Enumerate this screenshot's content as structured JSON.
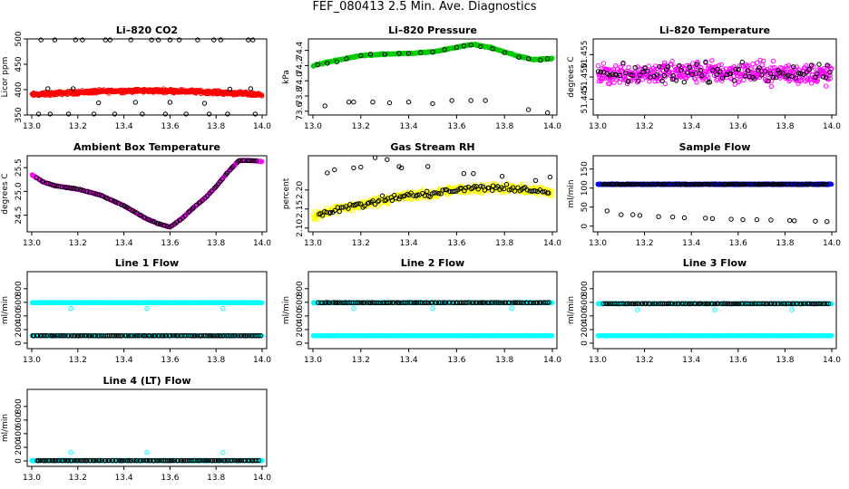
{
  "figure": {
    "title": "FEF_080413  2.5 Min. Ave. Diagnostics"
  },
  "colors": {
    "black": "#000000",
    "red": "#ff0000",
    "green": "#00cc00",
    "magenta": "#ff00ff",
    "yellow": "#ffff00",
    "blue": "#0000ff",
    "cyan": "#00ffff"
  },
  "chart_data": [
    {
      "type": "scatter",
      "title": "Li–820 CO2",
      "ylabel": "Licor ppm",
      "xlim": [
        13.0,
        14.0
      ],
      "ylim": [
        350,
        500
      ],
      "xticks": [
        "13.0",
        "13.2",
        "13.4",
        "13.6",
        "13.8",
        "14.0"
      ],
      "yticks": [
        "350",
        "400",
        "450",
        "500"
      ],
      "series": [
        {
          "color": "red",
          "style": "dense",
          "pattern": "flat",
          "x_range": [
            13.0,
            14.0
          ],
          "base": 390,
          "amp": 8,
          "noise": 5,
          "n": 500
        },
        {
          "color": "black",
          "style": "points",
          "x": [
            13.04,
            13.1,
            13.19,
            13.22,
            13.32,
            13.34,
            13.43,
            13.52,
            13.55,
            13.6,
            13.64,
            13.72,
            13.79,
            13.82,
            13.94,
            13.96,
            13.03,
            13.08,
            13.16,
            13.27,
            13.36,
            13.48,
            13.58,
            13.67,
            13.77,
            13.85,
            13.97,
            13.07,
            13.18,
            13.29,
            13.45,
            13.6,
            13.75,
            13.86,
            13.95
          ],
          "y": [
            498,
            498,
            498,
            498,
            498,
            498,
            498,
            498,
            498,
            498,
            498,
            498,
            498,
            498,
            498,
            498,
            352,
            352,
            352,
            352,
            352,
            352,
            352,
            352,
            352,
            352,
            352,
            402,
            402,
            374,
            375,
            375,
            373,
            401,
            402
          ]
        }
      ]
    },
    {
      "type": "scatter",
      "title": "Li–820 Pressure",
      "ylabel": "kPa",
      "xlim": [
        13.0,
        14.0
      ],
      "ylim": [
        73.55,
        74.55
      ],
      "xticks": [
        "13.0",
        "13.2",
        "13.4",
        "13.6",
        "13.8",
        "14.0"
      ],
      "yticks": [
        "73.6",
        "73.8",
        "74.0",
        "74.2",
        "74.4"
      ],
      "series": [
        {
          "color": "green",
          "style": "dense",
          "pattern": "pressure",
          "x_range": [
            13.0,
            14.0
          ],
          "noise": 0.012,
          "n": 500
        },
        {
          "color": "black",
          "style": "points",
          "x": [
            13.02,
            13.06,
            13.1,
            13.14,
            13.2,
            13.24,
            13.3,
            13.36,
            13.4,
            13.45,
            13.5,
            13.55,
            13.6,
            13.63,
            13.66,
            13.7,
            13.75,
            13.8,
            13.86,
            13.9,
            13.95,
            13.98,
            13.05,
            13.15,
            13.17,
            13.25,
            13.32,
            13.4,
            13.5,
            13.58,
            13.66,
            13.72,
            13.9,
            13.98
          ],
          "y": [
            74.21,
            74.23,
            74.25,
            74.29,
            74.33,
            74.35,
            74.35,
            74.36,
            74.36,
            74.37,
            74.38,
            74.41,
            74.44,
            74.46,
            74.47,
            74.45,
            74.42,
            74.37,
            74.31,
            74.29,
            74.27,
            74.29,
            73.67,
            73.72,
            73.72,
            73.72,
            73.71,
            73.72,
            73.7,
            73.74,
            73.74,
            73.74,
            73.62,
            73.58
          ]
        }
      ]
    },
    {
      "type": "scatter",
      "title": "Li–820 Temperature",
      "ylabel": "degrees C",
      "xlim": [
        13.0,
        14.0
      ],
      "ylim": [
        51.4415,
        51.4585
      ],
      "xticks": [
        "13.0",
        "13.2",
        "13.4",
        "13.6",
        "13.8",
        "14.0"
      ],
      "yticks": [
        "51.445",
        "51.450",
        "51.455"
      ],
      "series": [
        {
          "color": "magenta",
          "style": "dense",
          "pattern": "flat",
          "x_range": [
            13.0,
            14.0
          ],
          "base": 51.4505,
          "amp": 0.0006,
          "noise": 0.0035,
          "n": 450
        },
        {
          "color": "black",
          "style": "dense",
          "pattern": "flat",
          "x_range": [
            13.0,
            14.0
          ],
          "base": 51.4505,
          "amp": 0.0005,
          "noise": 0.003,
          "n": 90
        }
      ]
    },
    {
      "type": "scatter",
      "title": "Ambient Box Temperature",
      "ylabel": "degrees C",
      "xlim": [
        13.0,
        14.0
      ],
      "ylim": [
        24.15,
        25.75
      ],
      "xticks": [
        "13.0",
        "13.2",
        "13.4",
        "13.6",
        "13.8",
        "14.0"
      ],
      "yticks": [
        "24.5",
        "25.0",
        "25.5"
      ],
      "series": [
        {
          "color": "magenta",
          "style": "dense",
          "pattern": "ambient",
          "x_range": [
            13.0,
            14.0
          ],
          "noise": 0.012,
          "n": 500
        },
        {
          "color": "black",
          "style": "dense",
          "pattern": "ambient",
          "x_range": [
            13.02,
            13.98
          ],
          "noise": 0.008,
          "n": 100
        }
      ]
    },
    {
      "type": "scatter",
      "title": "Gas Stream RH",
      "ylabel": "percent",
      "xlim": [
        13.0,
        14.0
      ],
      "ylim": [
        2.09,
        2.29
      ],
      "xticks": [
        "13.0",
        "13.2",
        "13.4",
        "13.6",
        "13.8",
        "14.0"
      ],
      "yticks": [
        "2.10",
        "2.15",
        "2.20"
      ],
      "series": [
        {
          "color": "yellow",
          "style": "dense",
          "pattern": "rh",
          "x_range": [
            13.0,
            14.0
          ],
          "noise": 0.017,
          "n": 520
        },
        {
          "color": "black",
          "style": "dense",
          "pattern": "rh",
          "x_range": [
            13.02,
            13.99
          ],
          "noise": 0.013,
          "n": 110
        },
        {
          "color": "black",
          "style": "points",
          "x": [
            13.06,
            13.09,
            13.17,
            13.2,
            13.26,
            13.31,
            13.36,
            13.37,
            13.48,
            13.63,
            13.67,
            13.79,
            13.93,
            13.99
          ],
          "y": [
            2.245,
            2.253,
            2.258,
            2.26,
            2.285,
            2.28,
            2.262,
            2.258,
            2.262,
            2.243,
            2.243,
            2.236,
            2.225,
            2.234
          ]
        }
      ]
    },
    {
      "type": "scatter",
      "title": "Sample Flow",
      "ylabel": "ml/min",
      "xlim": [
        13.0,
        14.0
      ],
      "ylim": [
        -15,
        185
      ],
      "xticks": [
        "13.0",
        "13.2",
        "13.4",
        "13.6",
        "13.8",
        "14.0"
      ],
      "yticks": [
        "0",
        "50",
        "100",
        "150"
      ],
      "series": [
        {
          "color": "blue",
          "style": "dense",
          "pattern": "flat",
          "x_range": [
            13.0,
            14.0
          ],
          "base": 110,
          "amp": 0,
          "noise": 1.5,
          "n": 500
        },
        {
          "color": "black",
          "style": "dense",
          "pattern": "flat",
          "x_range": [
            13.02,
            13.98
          ],
          "base": 110,
          "amp": 0,
          "noise": 1.2,
          "n": 110
        },
        {
          "color": "black",
          "style": "points",
          "x": [
            13.04,
            13.1,
            13.15,
            13.18,
            13.26,
            13.32,
            13.37,
            13.46,
            13.49,
            13.57,
            13.62,
            13.68,
            13.74,
            13.82,
            13.84,
            13.93,
            13.98
          ],
          "y": [
            40,
            30,
            30,
            28,
            25,
            24,
            22,
            21,
            20,
            18,
            17,
            17,
            16,
            15,
            14,
            13,
            12
          ]
        }
      ]
    },
    {
      "type": "scatter",
      "title": "Line 1 Flow",
      "ylabel": "ml/min",
      "xlim": [
        13.0,
        14.0
      ],
      "ylim": [
        -80,
        1050
      ],
      "xticks": [
        "13.0",
        "13.2",
        "13.4",
        "13.6",
        "13.8",
        "14.0"
      ],
      "yticks": [
        "0",
        "200",
        "400",
        "600",
        "800"
      ],
      "series": [
        {
          "color": "cyan",
          "style": "dense",
          "pattern": "flat",
          "x_range": [
            13.0,
            14.0
          ],
          "base": 595,
          "amp": 0,
          "noise": 6,
          "n": 420
        },
        {
          "color": "cyan",
          "style": "dense",
          "pattern": "flat",
          "x_range": [
            13.0,
            14.0
          ],
          "base": 110,
          "amp": 0,
          "noise": 4,
          "n": 420
        },
        {
          "color": "black",
          "style": "dense",
          "pattern": "flat",
          "x_range": [
            13.0,
            14.0
          ],
          "base": 110,
          "amp": 0,
          "noise": 3,
          "n": 120
        },
        {
          "color": "cyan",
          "style": "points",
          "x": [
            13.17,
            13.5,
            13.83
          ],
          "y": [
            510,
            510,
            510
          ]
        }
      ]
    },
    {
      "type": "scatter",
      "title": "Line 2 Flow",
      "ylabel": "ml/min",
      "xlim": [
        13.0,
        14.0
      ],
      "ylim": [
        -80,
        1050
      ],
      "xticks": [
        "13.0",
        "13.2",
        "13.4",
        "13.6",
        "13.8",
        "14.0"
      ],
      "yticks": [
        "0",
        "200",
        "400",
        "600",
        "800"
      ],
      "series": [
        {
          "color": "cyan",
          "style": "dense",
          "pattern": "flat",
          "x_range": [
            13.0,
            14.0
          ],
          "base": 595,
          "amp": 0,
          "noise": 5,
          "n": 420
        },
        {
          "color": "black",
          "style": "dense",
          "pattern": "flat",
          "x_range": [
            13.02,
            13.99
          ],
          "base": 595,
          "amp": 0,
          "noise": 4,
          "n": 120
        },
        {
          "color": "cyan",
          "style": "dense",
          "pattern": "flat",
          "x_range": [
            13.0,
            14.0
          ],
          "base": 110,
          "amp": 0,
          "noise": 4,
          "n": 420
        },
        {
          "color": "cyan",
          "style": "points",
          "x": [
            13.17,
            13.5,
            13.83
          ],
          "y": [
            510,
            510,
            510
          ]
        }
      ]
    },
    {
      "type": "scatter",
      "title": "Line 3 Flow",
      "ylabel": "ml/min",
      "xlim": [
        13.0,
        14.0
      ],
      "ylim": [
        -80,
        1050
      ],
      "xticks": [
        "13.0",
        "13.2",
        "13.4",
        "13.6",
        "13.8",
        "14.0"
      ],
      "yticks": [
        "0",
        "200",
        "400",
        "600",
        "800"
      ],
      "series": [
        {
          "color": "cyan",
          "style": "dense",
          "pattern": "flat",
          "x_range": [
            13.0,
            14.0
          ],
          "base": 580,
          "amp": 0,
          "noise": 5,
          "n": 420
        },
        {
          "color": "black",
          "style": "dense",
          "pattern": "flat",
          "x_range": [
            13.02,
            13.99
          ],
          "base": 580,
          "amp": 0,
          "noise": 4,
          "n": 120
        },
        {
          "color": "cyan",
          "style": "dense",
          "pattern": "flat",
          "x_range": [
            13.0,
            14.0
          ],
          "base": 110,
          "amp": 0,
          "noise": 4,
          "n": 420
        },
        {
          "color": "cyan",
          "style": "points",
          "x": [
            13.17,
            13.5,
            13.83
          ],
          "y": [
            490,
            490,
            490
          ]
        }
      ]
    },
    {
      "type": "scatter",
      "title": "Line 4 (LT) Flow",
      "ylabel": "ml/min",
      "xlim": [
        13.0,
        14.0
      ],
      "ylim": [
        -80,
        1050
      ],
      "xticks": [
        "13.0",
        "13.2",
        "13.4",
        "13.6",
        "13.8",
        "14.0"
      ],
      "yticks": [
        "0",
        "200",
        "400",
        "600",
        "800"
      ],
      "series": [
        {
          "color": "cyan",
          "style": "dense",
          "pattern": "flat",
          "x_range": [
            13.0,
            14.0
          ],
          "base": 5,
          "amp": 0,
          "noise": 3,
          "n": 420
        },
        {
          "color": "black",
          "style": "dense",
          "pattern": "flat",
          "x_range": [
            13.02,
            13.99
          ],
          "base": 5,
          "amp": 0,
          "noise": 2,
          "n": 120
        },
        {
          "color": "cyan",
          "style": "points",
          "x": [
            13.17,
            13.5,
            13.83
          ],
          "y": [
            125,
            125,
            125
          ]
        }
      ]
    }
  ]
}
